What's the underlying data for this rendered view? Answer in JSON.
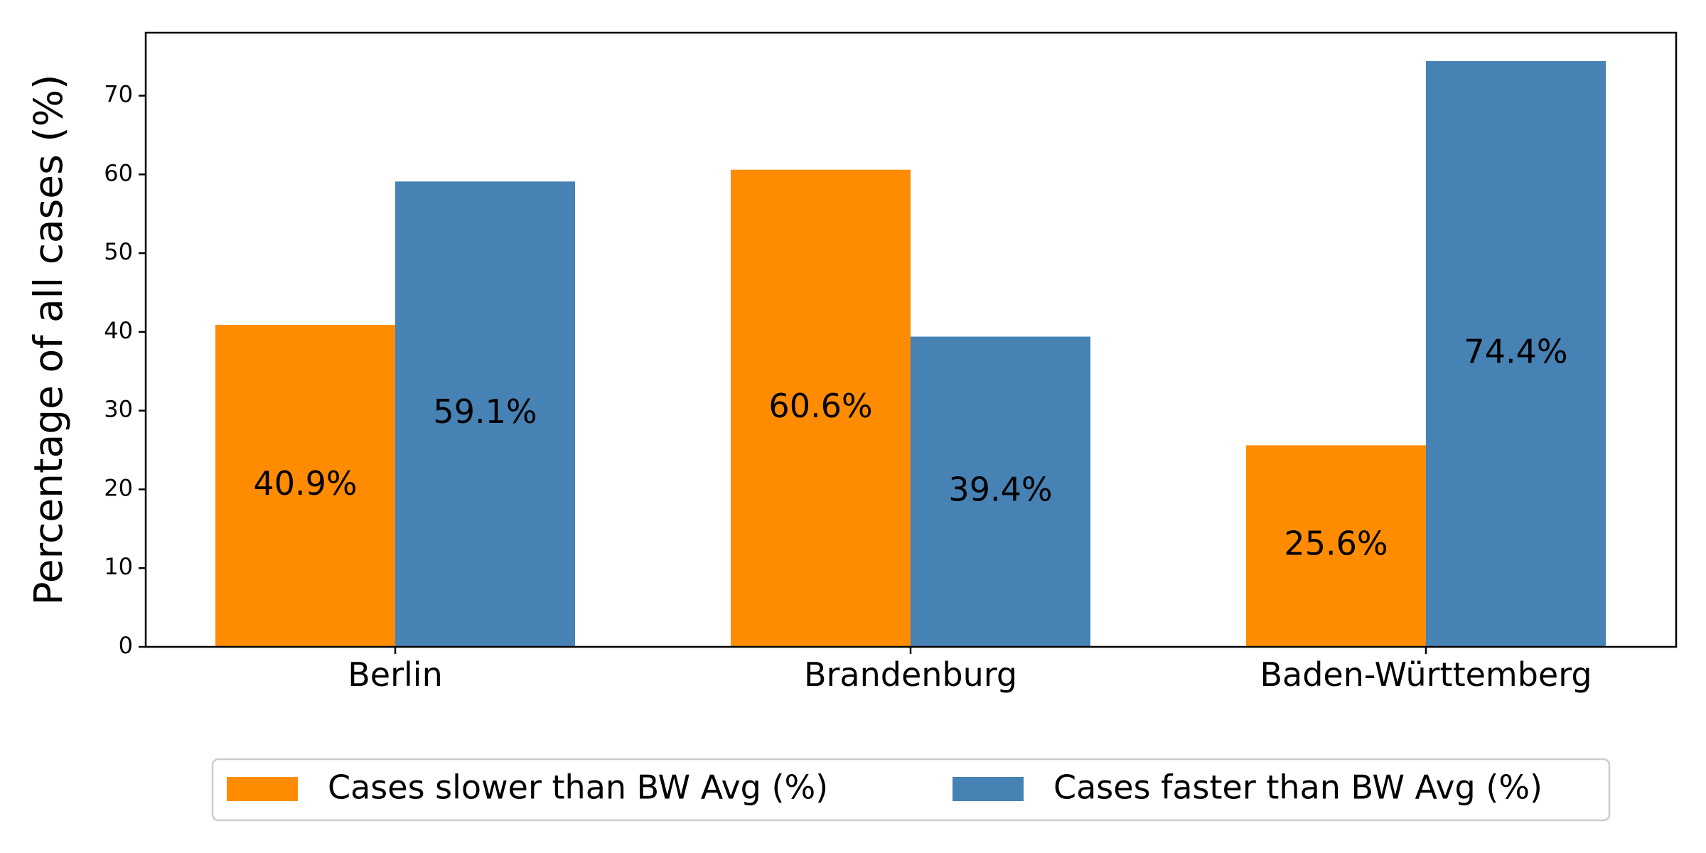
{
  "chart_data": {
    "type": "bar",
    "title": "",
    "xlabel": "",
    "ylabel": "Percentage of all cases (%)",
    "ylim": [
      0,
      78
    ],
    "yticks": [
      0,
      10,
      20,
      30,
      40,
      50,
      60,
      70
    ],
    "categories": [
      "Berlin",
      "Brandenburg",
      "Baden-Württemberg"
    ],
    "series": [
      {
        "name": "Cases slower than BW Avg (%)",
        "color": "#ff8c00",
        "values": [
          40.9,
          60.6,
          25.6
        ],
        "labels": [
          "40.9%",
          "60.6%",
          "25.6%"
        ]
      },
      {
        "name": "Cases faster than BW Avg (%)",
        "color": "#4682b4",
        "values": [
          59.1,
          39.4,
          74.4
        ],
        "labels": [
          "59.1%",
          "39.4%",
          "74.4%"
        ]
      }
    ],
    "grid": false,
    "legend_position": "bottom-center"
  }
}
